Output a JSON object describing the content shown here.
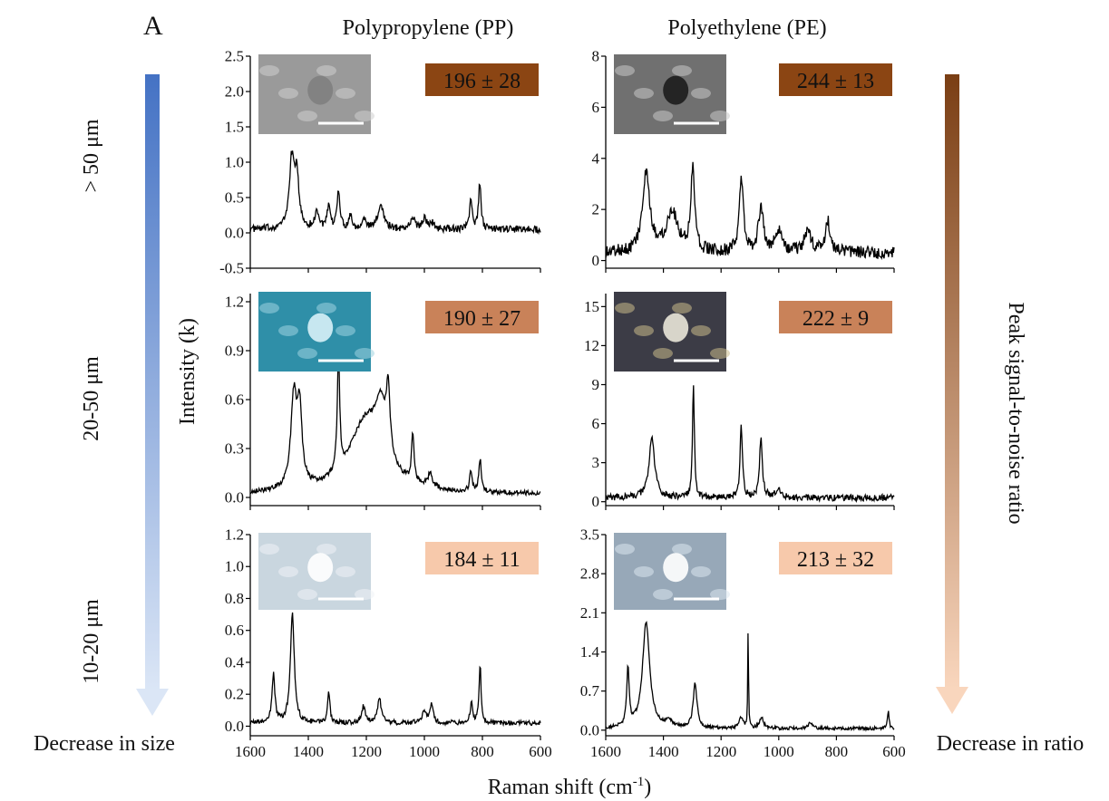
{
  "panel_letter": "A",
  "columns": [
    "Polypropylene (PP)",
    "Polyethylene (PE)"
  ],
  "rows": [
    "> 50 μm",
    "20-50 μm",
    "10-20 μm"
  ],
  "xlabel_main": "Raman shift (cm",
  "xlabel_sup": "-1",
  "xlabel_close": ")",
  "ylabel": "Intensity (k)",
  "left_arrow_label": "Decrease in size",
  "right_arrow_label": "Decrease in ratio",
  "right_axis_title": "Peak signal-to-noise ratio",
  "colors": {
    "size_arrow_top": "#4472c4",
    "size_arrow_bottom": "#dbe6f6",
    "ratio_arrow_top": "#7a3e14",
    "ratio_arrow_bottom": "#f9d6bd",
    "snr_badges": [
      "#8b4513",
      "#c98259",
      "#f7c9ab"
    ]
  },
  "chart_data": [
    {
      "type": "line",
      "name": "PP > 50 μm",
      "snr_label": "196 ± 28",
      "xlim": [
        1600,
        600
      ],
      "ylim": [
        -0.5,
        2.5
      ],
      "yticks": [
        "2.5",
        "2.0",
        "1.5",
        "1.0",
        "0.5",
        "0.0",
        "-0.5"
      ],
      "xticks": [],
      "baseline": 0.05,
      "noise": 0.05,
      "peaks": [
        [
          1457,
          0.95,
          10
        ],
        [
          1440,
          0.7,
          9
        ],
        [
          1370,
          0.25,
          8
        ],
        [
          1330,
          0.3,
          6
        ],
        [
          1296,
          0.55,
          6
        ],
        [
          1255,
          0.2,
          6
        ],
        [
          1210,
          0.15,
          8
        ],
        [
          1150,
          0.35,
          12
        ],
        [
          1040,
          0.15,
          10
        ],
        [
          1000,
          0.15,
          8
        ],
        [
          975,
          0.1,
          8
        ],
        [
          840,
          0.45,
          5
        ],
        [
          809,
          0.65,
          5
        ]
      ]
    },
    {
      "type": "line",
      "name": "PE > 50 μm",
      "snr_label": "244 ± 13",
      "xlim": [
        1600,
        600
      ],
      "ylim": [
        -0.3,
        8
      ],
      "yticks": [
        "8",
        "6",
        "4",
        "2",
        "0"
      ],
      "xticks": [],
      "baseline": 0.3,
      "noise": 0.25,
      "peaks": [
        [
          1460,
          3.0,
          15
        ],
        [
          1370,
          1.6,
          25
        ],
        [
          1298,
          3.3,
          8
        ],
        [
          1130,
          3.0,
          8
        ],
        [
          1062,
          1.8,
          10
        ],
        [
          1000,
          0.8,
          15
        ],
        [
          900,
          0.8,
          15
        ],
        [
          830,
          1.2,
          10
        ]
      ]
    },
    {
      "type": "line",
      "name": "PP 20-50 μm",
      "snr_label": "190 ± 27",
      "xlim": [
        1600,
        600
      ],
      "ylim": [
        -0.05,
        1.25
      ],
      "yticks": [
        "1.2",
        "0.9",
        "0.6",
        "0.3",
        "0.0"
      ],
      "xticks": [],
      "baseline": 0.02,
      "noise": 0.015,
      "peaks": [
        [
          1450,
          0.55,
          12
        ],
        [
          1430,
          0.45,
          10
        ],
        [
          1296,
          0.7,
          5
        ],
        [
          1200,
          0.45,
          70
        ],
        [
          1150,
          0.3,
          20
        ],
        [
          1125,
          0.4,
          8
        ],
        [
          1040,
          0.3,
          5
        ],
        [
          980,
          0.08,
          10
        ],
        [
          840,
          0.12,
          5
        ],
        [
          808,
          0.2,
          5
        ]
      ]
    },
    {
      "type": "line",
      "name": "PE 20-50 μm",
      "snr_label": "222 ± 9",
      "xlim": [
        1600,
        600
      ],
      "ylim": [
        -0.3,
        16
      ],
      "yticks": [
        "15",
        "12",
        "9",
        "6",
        "3",
        "0"
      ],
      "xticks": [],
      "baseline": 0.3,
      "noise": 0.25,
      "peaks": [
        [
          1440,
          4.5,
          12
        ],
        [
          1296,
          8.5,
          4
        ],
        [
          1130,
          5.5,
          5
        ],
        [
          1062,
          4.5,
          6
        ],
        [
          1000,
          0.5,
          15
        ]
      ]
    },
    {
      "type": "line",
      "name": "PP 10-20 μm",
      "snr_label": "184 ± 11",
      "xlim": [
        1600,
        600
      ],
      "ylim": [
        -0.06,
        1.2
      ],
      "yticks": [
        "1.2",
        "1.0",
        "0.8",
        "0.6",
        "0.4",
        "0.2",
        "0.0"
      ],
      "xticks": [
        "1600",
        "1400",
        "1200",
        "1000",
        "800",
        "600"
      ],
      "baseline": 0.02,
      "noise": 0.015,
      "peaks": [
        [
          1520,
          0.3,
          6
        ],
        [
          1455,
          0.68,
          8
        ],
        [
          1330,
          0.2,
          5
        ],
        [
          1210,
          0.1,
          8
        ],
        [
          1155,
          0.15,
          8
        ],
        [
          1000,
          0.08,
          8
        ],
        [
          975,
          0.12,
          6
        ],
        [
          838,
          0.12,
          5
        ],
        [
          808,
          0.37,
          4
        ]
      ]
    },
    {
      "type": "line",
      "name": "PE 10-20 μm",
      "snr_label": "213 ± 32",
      "xlim": [
        1600,
        600
      ],
      "ylim": [
        -0.1,
        3.5
      ],
      "yticks": [
        "3.5",
        "2.8",
        "2.1",
        "1.4",
        "0.7",
        "0.0"
      ],
      "xticks": [
        "1600",
        "1400",
        "1200",
        "1000",
        "800",
        "600"
      ],
      "baseline": 0.03,
      "noise": 0.03,
      "peaks": [
        [
          1523,
          1.05,
          5
        ],
        [
          1460,
          1.9,
          15
        ],
        [
          1380,
          0.1,
          15
        ],
        [
          1290,
          0.8,
          8
        ],
        [
          1130,
          0.2,
          8
        ],
        [
          1106,
          1.85,
          1.5
        ],
        [
          1060,
          0.2,
          8
        ],
        [
          890,
          0.1,
          8
        ],
        [
          620,
          0.35,
          3
        ]
      ]
    }
  ]
}
